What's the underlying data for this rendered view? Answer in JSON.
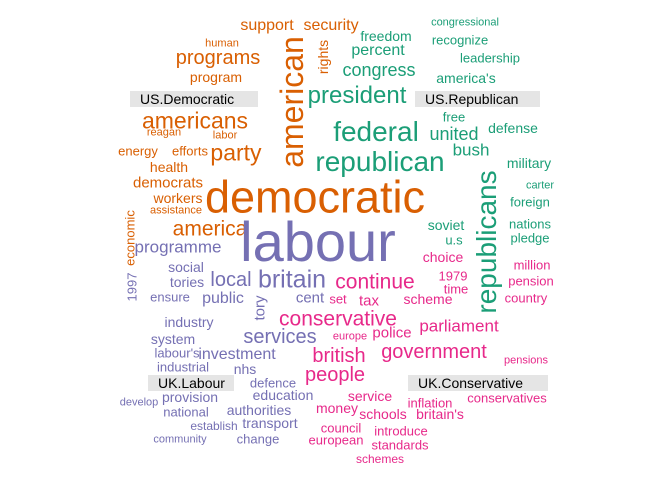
{
  "colors": {
    "us_democratic": "#d95f02",
    "us_republican": "#1b9e77",
    "uk_labour": "#7570b3",
    "uk_conservative": "#e7298a"
  },
  "group_labels": {
    "us_democratic": "US.Democratic",
    "us_republican": "US.Republican",
    "uk_labour": "UK.Labour",
    "uk_conservative": "UK.Conservative"
  },
  "words": [
    {
      "text": "support",
      "group": "us_democratic"
    },
    {
      "text": "security",
      "group": "us_democratic"
    },
    {
      "text": "human",
      "group": "us_democratic"
    },
    {
      "text": "programs",
      "group": "us_democratic"
    },
    {
      "text": "program",
      "group": "us_democratic"
    },
    {
      "text": "american",
      "group": "us_democratic"
    },
    {
      "text": "rights",
      "group": "us_democratic"
    },
    {
      "text": "americans",
      "group": "us_democratic"
    },
    {
      "text": "reagan",
      "group": "us_democratic"
    },
    {
      "text": "labor",
      "group": "us_democratic"
    },
    {
      "text": "party",
      "group": "us_democratic"
    },
    {
      "text": "energy",
      "group": "us_democratic"
    },
    {
      "text": "efforts",
      "group": "us_democratic"
    },
    {
      "text": "health",
      "group": "us_democratic"
    },
    {
      "text": "democrats",
      "group": "us_democratic"
    },
    {
      "text": "workers",
      "group": "us_democratic"
    },
    {
      "text": "assistance",
      "group": "us_democratic"
    },
    {
      "text": "democratic",
      "group": "us_democratic"
    },
    {
      "text": "economic",
      "group": "us_democratic"
    },
    {
      "text": "america",
      "group": "us_democratic"
    },
    {
      "text": "freedom",
      "group": "us_republican"
    },
    {
      "text": "congressional",
      "group": "us_republican"
    },
    {
      "text": "recognize",
      "group": "us_republican"
    },
    {
      "text": "percent",
      "group": "us_republican"
    },
    {
      "text": "leadership",
      "group": "us_republican"
    },
    {
      "text": "congress",
      "group": "us_republican"
    },
    {
      "text": "america's",
      "group": "us_republican"
    },
    {
      "text": "president",
      "group": "us_republican"
    },
    {
      "text": "free",
      "group": "us_republican"
    },
    {
      "text": "federal",
      "group": "us_republican"
    },
    {
      "text": "united",
      "group": "us_republican"
    },
    {
      "text": "defense",
      "group": "us_republican"
    },
    {
      "text": "republican",
      "group": "us_republican"
    },
    {
      "text": "bush",
      "group": "us_republican"
    },
    {
      "text": "military",
      "group": "us_republican"
    },
    {
      "text": "republicans",
      "group": "us_republican"
    },
    {
      "text": "carter",
      "group": "us_republican"
    },
    {
      "text": "foreign",
      "group": "us_republican"
    },
    {
      "text": "soviet",
      "group": "us_republican"
    },
    {
      "text": "nations",
      "group": "us_republican"
    },
    {
      "text": "u.s",
      "group": "us_republican"
    },
    {
      "text": "pledge",
      "group": "us_republican"
    },
    {
      "text": "labour",
      "group": "uk_labour"
    },
    {
      "text": "programme",
      "group": "uk_labour"
    },
    {
      "text": "social",
      "group": "uk_labour"
    },
    {
      "text": "local",
      "group": "uk_labour"
    },
    {
      "text": "britain",
      "group": "uk_labour"
    },
    {
      "text": "tories",
      "group": "uk_labour"
    },
    {
      "text": "1997",
      "group": "uk_labour"
    },
    {
      "text": "ensure",
      "group": "uk_labour"
    },
    {
      "text": "public",
      "group": "uk_labour"
    },
    {
      "text": "tory",
      "group": "uk_labour"
    },
    {
      "text": "cent",
      "group": "uk_labour"
    },
    {
      "text": "industry",
      "group": "uk_labour"
    },
    {
      "text": "services",
      "group": "uk_labour"
    },
    {
      "text": "system",
      "group": "uk_labour"
    },
    {
      "text": "labour's",
      "group": "uk_labour"
    },
    {
      "text": "investment",
      "group": "uk_labour"
    },
    {
      "text": "industrial",
      "group": "uk_labour"
    },
    {
      "text": "nhs",
      "group": "uk_labour"
    },
    {
      "text": "defence",
      "group": "uk_labour"
    },
    {
      "text": "develop",
      "group": "uk_labour"
    },
    {
      "text": "provision",
      "group": "uk_labour"
    },
    {
      "text": "education",
      "group": "uk_labour"
    },
    {
      "text": "national",
      "group": "uk_labour"
    },
    {
      "text": "authorities",
      "group": "uk_labour"
    },
    {
      "text": "establish",
      "group": "uk_labour"
    },
    {
      "text": "transport",
      "group": "uk_labour"
    },
    {
      "text": "community",
      "group": "uk_labour"
    },
    {
      "text": "change",
      "group": "uk_labour"
    },
    {
      "text": "choice",
      "group": "uk_conservative"
    },
    {
      "text": "million",
      "group": "uk_conservative"
    },
    {
      "text": "continue",
      "group": "uk_conservative"
    },
    {
      "text": "1979",
      "group": "uk_conservative"
    },
    {
      "text": "pension",
      "group": "uk_conservative"
    },
    {
      "text": "time",
      "group": "uk_conservative"
    },
    {
      "text": "set",
      "group": "uk_conservative"
    },
    {
      "text": "tax",
      "group": "uk_conservative"
    },
    {
      "text": "scheme",
      "group": "uk_conservative"
    },
    {
      "text": "country",
      "group": "uk_conservative"
    },
    {
      "text": "conservative",
      "group": "uk_conservative"
    },
    {
      "text": "europe",
      "group": "uk_conservative"
    },
    {
      "text": "police",
      "group": "uk_conservative"
    },
    {
      "text": "parliament",
      "group": "uk_conservative"
    },
    {
      "text": "british",
      "group": "uk_conservative"
    },
    {
      "text": "government",
      "group": "uk_conservative"
    },
    {
      "text": "pensions",
      "group": "uk_conservative"
    },
    {
      "text": "people",
      "group": "uk_conservative"
    },
    {
      "text": "service",
      "group": "uk_conservative"
    },
    {
      "text": "inflation",
      "group": "uk_conservative"
    },
    {
      "text": "conservatives",
      "group": "uk_conservative"
    },
    {
      "text": "money",
      "group": "uk_conservative"
    },
    {
      "text": "schools",
      "group": "uk_conservative"
    },
    {
      "text": "britain's",
      "group": "uk_conservative"
    },
    {
      "text": "council",
      "group": "uk_conservative"
    },
    {
      "text": "introduce",
      "group": "uk_conservative"
    },
    {
      "text": "european",
      "group": "uk_conservative"
    },
    {
      "text": "standards",
      "group": "uk_conservative"
    },
    {
      "text": "schemes",
      "group": "uk_conservative"
    }
  ]
}
